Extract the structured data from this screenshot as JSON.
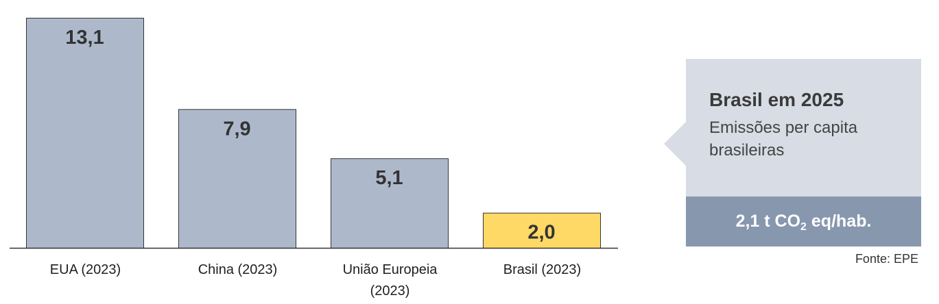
{
  "chart_data": {
    "type": "bar",
    "categories": [
      "EUA (2023)",
      "China (2023)",
      "União Europeia (2023)",
      "Brasil (2023)"
    ],
    "category_lines": [
      [
        "EUA (2023)"
      ],
      [
        "China (2023)"
      ],
      [
        "União Europeia",
        "(2023)"
      ],
      [
        "Brasil (2023)"
      ]
    ],
    "values": [
      13.1,
      7.9,
      5.1,
      2.0
    ],
    "value_labels": [
      "13,1",
      "7,9",
      "5,1",
      "2,0"
    ],
    "highlight_index": 3,
    "title": "",
    "xlabel": "",
    "ylabel": "",
    "ylim": [
      0,
      13.1
    ],
    "grid": false,
    "legend": "none"
  },
  "colors": {
    "bar": "#adb9cb",
    "bar_highlight": "#ffd965",
    "bar_stroke": "#333333",
    "axis": "#333333",
    "callout_light": "#d7dce5",
    "callout_dark": "#8797ae"
  },
  "callout": {
    "title": "Brasil em 2025",
    "subtitle": "Emissões per capita brasileiras",
    "value_prefix": "2,1 t CO",
    "value_sub": "2",
    "value_suffix": " eq/hab."
  },
  "source": "Fonte: EPE"
}
